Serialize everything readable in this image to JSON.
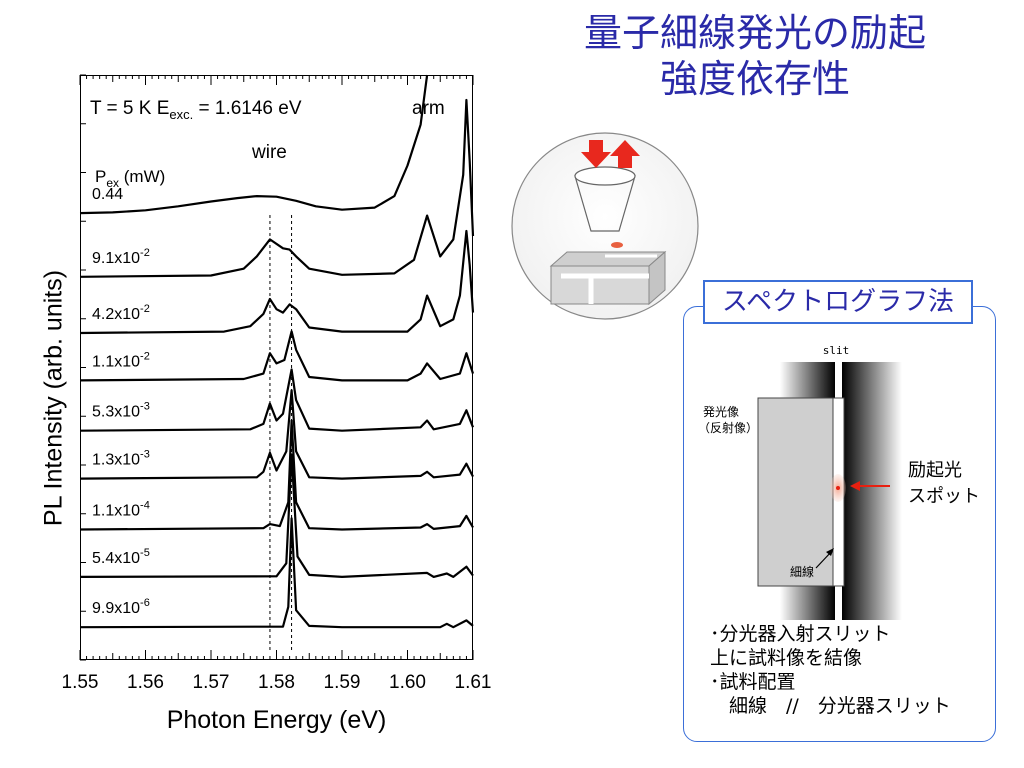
{
  "slide": {
    "title_line1": "量子細線発光の励起",
    "title_line2": "強度依存性"
  },
  "plot": {
    "condition_label": "T = 5 K  Eexc. = 1.6146 eV",
    "condition_parts": {
      "t": "T = 5 K  E",
      "sub": "exc.",
      "rest": " = 1.6146 eV"
    },
    "wire_label": "wire",
    "arm_label": "arm",
    "pex_label": {
      "main": "P",
      "sub": "ex",
      "rest": " (mW)"
    },
    "xlabel": "Photon Energy (eV)",
    "ylabel": "PL Intensity (arb. units)"
  },
  "chart_data": {
    "type": "line",
    "title": "",
    "xlabel": "Photon Energy (eV)",
    "ylabel": "PL Intensity (arb. units)",
    "xlim": [
      1.55,
      1.61
    ],
    "xticks": [
      "1.55",
      "1.56",
      "1.57",
      "1.58",
      "1.59",
      "1.60",
      "1.61"
    ],
    "dashed_lines_x": [
      1.579,
      1.5823
    ],
    "series": [
      {
        "name": "0.44",
        "label_base": "0.44",
        "label_exp": "",
        "baseline_frac": 0.236,
        "x": [
          1.55,
          1.555,
          1.56,
          1.565,
          1.57,
          1.574,
          1.577,
          1.58,
          1.583,
          1.586,
          1.59,
          1.595,
          1.598,
          1.6,
          1.602,
          1.603
        ],
        "y": [
          0.0,
          0.01,
          0.04,
          0.1,
          0.17,
          0.22,
          0.25,
          0.24,
          0.18,
          0.1,
          0.05,
          0.08,
          0.25,
          0.7,
          1.3,
          2.3
        ]
      },
      {
        "name": "9.1x10-2",
        "label_base": "9.1x10",
        "label_exp": "-2",
        "baseline_frac": 0.345,
        "x": [
          1.55,
          1.57,
          1.575,
          1.577,
          1.579,
          1.581,
          1.582,
          1.583,
          1.585,
          1.59,
          1.598,
          1.601,
          1.603,
          1.605,
          1.607,
          1.6085,
          1.609,
          1.6095,
          1.61
        ],
        "y": [
          0.0,
          0.02,
          0.12,
          0.3,
          0.55,
          0.42,
          0.4,
          0.3,
          0.12,
          0.03,
          0.05,
          0.25,
          0.9,
          0.3,
          0.55,
          1.5,
          2.6,
          1.7,
          0.6
        ]
      },
      {
        "name": "4.2x10-2",
        "label_base": "4.2x10",
        "label_exp": "-2",
        "baseline_frac": 0.441,
        "x": [
          1.55,
          1.572,
          1.576,
          1.578,
          1.579,
          1.58,
          1.581,
          1.582,
          1.583,
          1.585,
          1.59,
          1.6,
          1.602,
          1.603,
          1.605,
          1.607,
          1.608,
          1.609,
          1.6095,
          1.61
        ],
        "y": [
          0.0,
          0.02,
          0.1,
          0.28,
          0.5,
          0.35,
          0.3,
          0.42,
          0.35,
          0.08,
          0.02,
          0.02,
          0.2,
          0.55,
          0.1,
          0.2,
          0.55,
          1.5,
          1.0,
          0.3
        ]
      },
      {
        "name": "1.1x10-2",
        "label_base": "1.1x10",
        "label_exp": "-2",
        "baseline_frac": 0.522,
        "x": [
          1.55,
          1.575,
          1.578,
          1.579,
          1.58,
          1.5812,
          1.5823,
          1.583,
          1.585,
          1.59,
          1.6,
          1.602,
          1.603,
          1.605,
          1.608,
          1.609,
          1.61
        ],
        "y": [
          0.0,
          0.02,
          0.1,
          0.4,
          0.25,
          0.3,
          0.72,
          0.45,
          0.05,
          0.0,
          0.0,
          0.1,
          0.25,
          0.02,
          0.1,
          0.4,
          0.1
        ]
      },
      {
        "name": "5.3x10-3",
        "label_base": "5.3x10",
        "label_exp": "-3",
        "baseline_frac": 0.608,
        "x": [
          1.55,
          1.576,
          1.578,
          1.579,
          1.58,
          1.581,
          1.5823,
          1.583,
          1.585,
          1.59,
          1.602,
          1.603,
          1.604,
          1.608,
          1.609,
          1.61
        ],
        "y": [
          0.0,
          0.02,
          0.1,
          0.4,
          0.15,
          0.25,
          0.9,
          0.45,
          0.03,
          0.0,
          0.05,
          0.15,
          0.02,
          0.1,
          0.3,
          0.05
        ]
      },
      {
        "name": "1.3x10-3",
        "label_base": "1.3x10",
        "label_exp": "-3",
        "baseline_frac": 0.69,
        "x": [
          1.55,
          1.577,
          1.578,
          1.579,
          1.58,
          1.5815,
          1.5823,
          1.583,
          1.585,
          1.59,
          1.602,
          1.603,
          1.604,
          1.608,
          1.609,
          1.61
        ],
        "y": [
          0.0,
          0.02,
          0.1,
          0.38,
          0.12,
          0.4,
          1.3,
          0.4,
          0.02,
          0.0,
          0.04,
          0.1,
          0.02,
          0.06,
          0.22,
          0.03
        ]
      },
      {
        "name": "1.1x10-4",
        "label_base": "1.1x10",
        "label_exp": "-4",
        "baseline_frac": 0.777,
        "x": [
          1.55,
          1.578,
          1.579,
          1.5805,
          1.5818,
          1.5823,
          1.583,
          1.585,
          1.59,
          1.602,
          1.603,
          1.604,
          1.608,
          1.609,
          1.61
        ],
        "y": [
          0.0,
          0.02,
          0.08,
          0.05,
          0.4,
          1.6,
          0.4,
          0.02,
          0.0,
          0.03,
          0.08,
          0.01,
          0.05,
          0.2,
          0.03
        ]
      },
      {
        "name": "5.4x10-5",
        "label_base": "5.4x10",
        "label_exp": "-5",
        "baseline_frac": 0.858,
        "x": [
          1.55,
          1.58,
          1.5815,
          1.5823,
          1.5832,
          1.585,
          1.59,
          1.603,
          1.604,
          1.606,
          1.607,
          1.609,
          1.61
        ],
        "y": [
          0.0,
          0.01,
          0.2,
          1.8,
          0.3,
          0.03,
          0.0,
          0.06,
          0.0,
          0.05,
          0.0,
          0.15,
          0.02
        ]
      },
      {
        "name": "9.9x10-6",
        "label_base": "9.9x10",
        "label_exp": "-6",
        "baseline_frac": 0.944,
        "x": [
          1.55,
          1.581,
          1.5818,
          1.5823,
          1.583,
          1.585,
          1.59,
          1.605,
          1.606,
          1.607,
          1.609,
          1.61
        ],
        "y": [
          0.0,
          0.01,
          0.3,
          1.6,
          0.25,
          0.02,
          0.0,
          0.0,
          0.05,
          0.0,
          0.1,
          0.02
        ]
      }
    ]
  },
  "illustration": {
    "arrow_color": "#e8281e",
    "spot_color": "#e86040"
  },
  "method": {
    "title": "スペクトログラフ法",
    "slit_label": "slit",
    "image_label_line1": "発光像",
    "image_label_line2": "（反射像）",
    "wire_label": "細線",
    "spot_label_line1": "励起光",
    "spot_label_line2": "スポット",
    "notes": [
      "･分光器入射スリット",
      "上に試料像を結像",
      "･試料配置",
      "　細線　//　分光器スリット"
    ]
  }
}
